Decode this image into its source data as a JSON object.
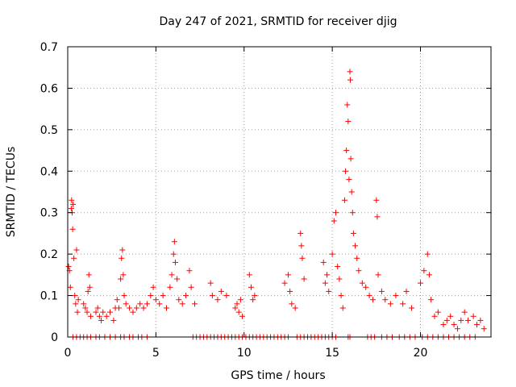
{
  "chart_data": {
    "type": "scatter",
    "title": "Day 247 of 2021, SRMTID for receiver djig",
    "xlabel": "GPS time / hours",
    "ylabel": "SRMTID / TECUs",
    "xlim": [
      0,
      24
    ],
    "ylim": [
      0,
      0.7
    ],
    "xticks": [
      0,
      5,
      10,
      15,
      20
    ],
    "xtick_labels": [
      "0",
      "5",
      "10",
      "15",
      "20"
    ],
    "yticks": [
      0,
      0.1,
      0.2,
      0.3,
      0.4,
      0.5,
      0.6,
      0.7
    ],
    "ytick_labels": [
      "0",
      "0.1",
      "0.2",
      "0.3",
      "0.4",
      "0.5",
      "0.6",
      "0.7"
    ],
    "grid": true,
    "marker": "+",
    "color": "#ff0000",
    "series": [
      {
        "name": "SRMTID",
        "points": [
          [
            0.05,
            0.17
          ],
          [
            0.1,
            0.16
          ],
          [
            0.15,
            0.12
          ],
          [
            0.2,
            0.31
          ],
          [
            0.22,
            0.33
          ],
          [
            0.25,
            0.3
          ],
          [
            0.28,
            0.26
          ],
          [
            0.3,
            0.32
          ],
          [
            0.35,
            0.19
          ],
          [
            0.4,
            0.1
          ],
          [
            0.45,
            0.08
          ],
          [
            0.5,
            0.21
          ],
          [
            0.55,
            0.06
          ],
          [
            0.6,
            0.09
          ],
          [
            0.9,
            0.08
          ],
          [
            1.0,
            0.07
          ],
          [
            1.1,
            0.06
          ],
          [
            1.15,
            0.11
          ],
          [
            1.2,
            0.15
          ],
          [
            1.25,
            0.12
          ],
          [
            1.3,
            0.05
          ],
          [
            1.6,
            0.06
          ],
          [
            1.7,
            0.07
          ],
          [
            1.8,
            0.05
          ],
          [
            1.9,
            0.04
          ],
          [
            2.0,
            0.06
          ],
          [
            2.2,
            0.05
          ],
          [
            2.4,
            0.06
          ],
          [
            2.6,
            0.04
          ],
          [
            2.7,
            0.07
          ],
          [
            2.8,
            0.09
          ],
          [
            2.9,
            0.07
          ],
          [
            3.0,
            0.14
          ],
          [
            3.05,
            0.19
          ],
          [
            3.1,
            0.21
          ],
          [
            3.15,
            0.15
          ],
          [
            3.2,
            0.1
          ],
          [
            3.3,
            0.08
          ],
          [
            3.5,
            0.07
          ],
          [
            3.7,
            0.06
          ],
          [
            3.9,
            0.07
          ],
          [
            4.1,
            0.08
          ],
          [
            4.3,
            0.07
          ],
          [
            4.5,
            0.08
          ],
          [
            4.7,
            0.1
          ],
          [
            4.85,
            0.12
          ],
          [
            5.0,
            0.09
          ],
          [
            5.2,
            0.08
          ],
          [
            5.4,
            0.1
          ],
          [
            5.6,
            0.07
          ],
          [
            5.8,
            0.12
          ],
          [
            5.9,
            0.15
          ],
          [
            6.0,
            0.2
          ],
          [
            6.05,
            0.23
          ],
          [
            6.1,
            0.18
          ],
          [
            6.2,
            0.14
          ],
          [
            6.3,
            0.09
          ],
          [
            6.5,
            0.08
          ],
          [
            6.7,
            0.1
          ],
          [
            6.9,
            0.16
          ],
          [
            7.0,
            0.12
          ],
          [
            7.2,
            0.08
          ],
          [
            8.1,
            0.13
          ],
          [
            8.2,
            0.1
          ],
          [
            8.5,
            0.09
          ],
          [
            8.7,
            0.11
          ],
          [
            9.0,
            0.1
          ],
          [
            9.5,
            0.07
          ],
          [
            9.6,
            0.08
          ],
          [
            9.7,
            0.06
          ],
          [
            9.8,
            0.09
          ],
          [
            9.9,
            0.05
          ],
          [
            10.3,
            0.15
          ],
          [
            10.4,
            0.12
          ],
          [
            10.5,
            0.09
          ],
          [
            10.6,
            0.1
          ],
          [
            12.3,
            0.13
          ],
          [
            12.5,
            0.15
          ],
          [
            12.6,
            0.11
          ],
          [
            12.7,
            0.08
          ],
          [
            12.9,
            0.07
          ],
          [
            13.2,
            0.25
          ],
          [
            13.25,
            0.22
          ],
          [
            13.3,
            0.19
          ],
          [
            13.4,
            0.14
          ],
          [
            14.5,
            0.18
          ],
          [
            14.6,
            0.13
          ],
          [
            14.7,
            0.15
          ],
          [
            14.8,
            0.11
          ],
          [
            15.0,
            0.2
          ],
          [
            15.1,
            0.28
          ],
          [
            15.2,
            0.3
          ],
          [
            15.3,
            0.17
          ],
          [
            15.4,
            0.14
          ],
          [
            15.5,
            0.1
          ],
          [
            15.6,
            0.07
          ],
          [
            15.7,
            0.33
          ],
          [
            15.75,
            0.4
          ],
          [
            15.8,
            0.45
          ],
          [
            15.85,
            0.56
          ],
          [
            15.9,
            0.52
          ],
          [
            15.95,
            0.38
          ],
          [
            16.0,
            0.64
          ],
          [
            16.02,
            0.62
          ],
          [
            16.05,
            0.43
          ],
          [
            16.1,
            0.35
          ],
          [
            16.15,
            0.3
          ],
          [
            16.2,
            0.25
          ],
          [
            16.3,
            0.22
          ],
          [
            16.4,
            0.19
          ],
          [
            16.5,
            0.16
          ],
          [
            16.7,
            0.13
          ],
          [
            16.9,
            0.12
          ],
          [
            17.1,
            0.1
          ],
          [
            17.3,
            0.09
          ],
          [
            17.5,
            0.33
          ],
          [
            17.55,
            0.29
          ],
          [
            17.6,
            0.15
          ],
          [
            17.8,
            0.11
          ],
          [
            18.0,
            0.09
          ],
          [
            18.3,
            0.08
          ],
          [
            18.6,
            0.1
          ],
          [
            19.0,
            0.08
          ],
          [
            19.2,
            0.11
          ],
          [
            19.5,
            0.07
          ],
          [
            20.0,
            0.13
          ],
          [
            20.2,
            0.16
          ],
          [
            20.4,
            0.2
          ],
          [
            20.5,
            0.15
          ],
          [
            20.6,
            0.09
          ],
          [
            20.8,
            0.05
          ],
          [
            21.0,
            0.06
          ],
          [
            21.3,
            0.03
          ],
          [
            21.5,
            0.04
          ],
          [
            21.7,
            0.05
          ],
          [
            21.9,
            0.03
          ],
          [
            22.1,
            0.02
          ],
          [
            22.3,
            0.04
          ],
          [
            22.5,
            0.06
          ],
          [
            22.7,
            0.04
          ],
          [
            23.0,
            0.05
          ],
          [
            23.2,
            0.03
          ],
          [
            23.4,
            0.04
          ],
          [
            23.6,
            0.02
          ]
        ]
      }
    ],
    "baseline_zero_points_x": [
      0.3,
      0.5,
      0.7,
      0.9,
      1.1,
      1.3,
      1.6,
      1.8,
      2.1,
      2.4,
      2.7,
      3.0,
      3.2,
      3.5,
      3.7,
      4.0,
      4.2,
      4.5,
      7.1,
      7.3,
      7.5,
      7.7,
      7.9,
      8.1,
      8.3,
      8.5,
      8.7,
      8.9,
      9.1,
      9.3,
      9.5,
      9.7,
      9.9,
      10.1,
      10.3,
      10.5,
      10.7,
      10.9,
      11.1,
      11.3,
      11.5,
      11.7,
      11.9,
      12.1,
      12.3,
      12.5,
      13.0,
      13.2,
      13.4,
      13.6,
      13.8,
      14.0,
      14.2,
      14.4,
      14.6,
      14.8,
      15.0,
      15.2,
      15.9,
      16.0,
      17.0,
      17.2,
      17.4,
      17.8,
      18.1,
      18.4,
      18.8,
      19.1,
      19.4,
      19.7,
      20.1,
      20.4,
      20.7,
      21.0,
      21.3,
      21.6,
      21.9,
      22.2,
      22.5,
      22.8,
      23.1
    ]
  }
}
